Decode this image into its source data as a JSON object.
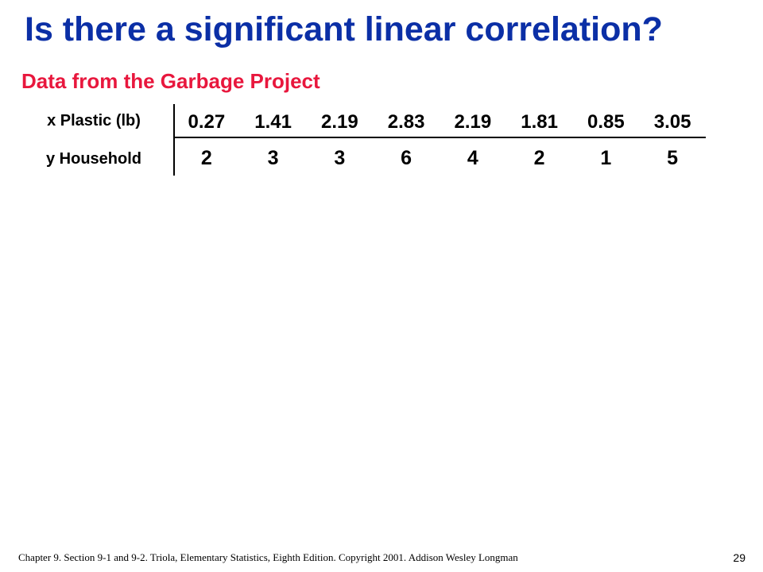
{
  "title": "Is there a significant linear correlation?",
  "subtitle": "Data from the Garbage Project",
  "table": {
    "x_label": "x  Plastic (lb)",
    "y_label": "y  Household",
    "x_values": [
      "0.27",
      "1.41",
      "2.19",
      "2.83",
      "2.19",
      "1.81",
      "0.85",
      "3.05"
    ],
    "y_values": [
      "2",
      "3",
      "3",
      "6",
      "4",
      "2",
      "1",
      "5"
    ]
  },
  "footer": "Chapter 9.  Section 9-1 and 9-2.  Triola, Elementary Statistics, Eighth Edition. Copyright  2001.  Addison Wesley Longman",
  "page_number": "29",
  "colors": {
    "title": "#0b2fa6",
    "subtitle": "#e8173d",
    "text": "#000000",
    "background": "#ffffff"
  }
}
